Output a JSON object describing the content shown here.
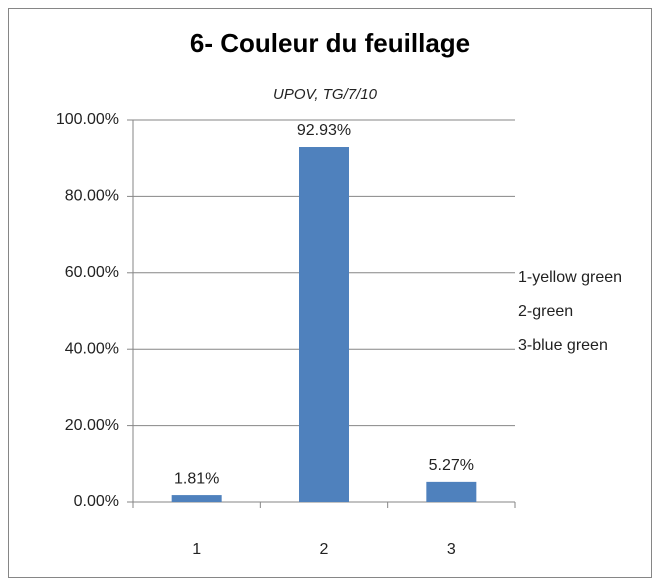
{
  "chart_data": {
    "type": "bar",
    "title": "6- Couleur du feuillage",
    "subtitle": "UPOV, TG/7/10",
    "categories": [
      "1",
      "2",
      "3"
    ],
    "values": [
      1.81,
      92.93,
      5.27
    ],
    "value_labels": [
      "1.81%",
      "92.93%",
      "5.27%"
    ],
    "color": "#4f81bd",
    "ylim": [
      0,
      100
    ],
    "yticks": [
      {
        "value": 0,
        "label": "0.00%"
      },
      {
        "value": 20,
        "label": "20.00%"
      },
      {
        "value": 40,
        "label": "40.00%"
      },
      {
        "value": 60,
        "label": "60.00%"
      },
      {
        "value": 80,
        "label": "80.00%"
      },
      {
        "value": 100,
        "label": "100.00%"
      }
    ],
    "grid": true,
    "annotations": [
      "1-yellow green",
      "2-green",
      "3-blue green"
    ]
  }
}
